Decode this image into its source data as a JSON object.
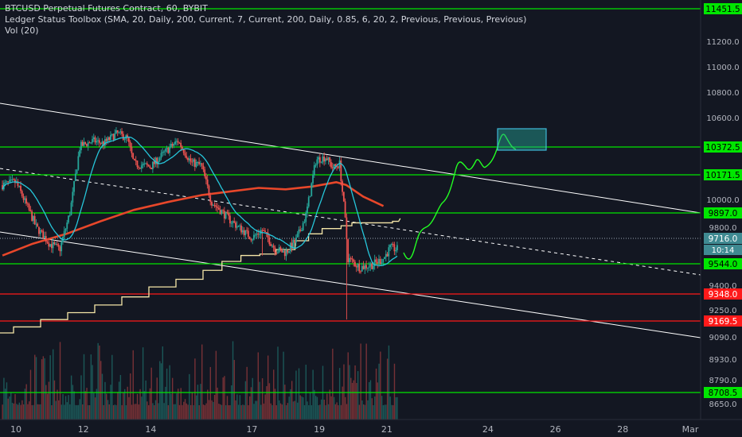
{
  "header": {
    "symbol_line": "BTCUSD Perpetual Futures Contract, 60, BYBIT",
    "indicator_line": "Ledger Status Toolbox (SMA, 20, Daily, 200, Current, 7, Current, 200, Daily, 0.85, 6, 20, 2, Previous, Previous, Previous)",
    "volume_line": "Vol (20)"
  },
  "chart_data": {
    "type": "candlestick",
    "x_tick_labels": [
      "10",
      "12",
      "14",
      "17",
      "19",
      "21",
      "24",
      "26",
      "28",
      "Mar"
    ],
    "y_tick_labels": [
      "11200.0",
      "11000.0",
      "10800.0",
      "10600.0",
      "10000.0",
      "9800.0",
      "9400.0",
      "9250.0",
      "9090.0",
      "8930.0",
      "8790.0",
      "8650.0"
    ],
    "y_range": [
      8600,
      11500
    ],
    "horizontal_levels": [
      {
        "label": "11451.5",
        "value": 11451.5,
        "color": "#00e600"
      },
      {
        "label": "10372.5",
        "value": 10372.5,
        "color": "#00e600"
      },
      {
        "label": "10171.5",
        "value": 10171.5,
        "color": "#00e600"
      },
      {
        "label": "9897.0",
        "value": 9897.0,
        "color": "#00e600"
      },
      {
        "label": "9544.0",
        "value": 9544.0,
        "color": "#00e600"
      },
      {
        "label": "9348.0",
        "value": 9348.0,
        "color": "#ff1a1a"
      },
      {
        "label": "9169.5",
        "value": 9169.5,
        "color": "#ff1a1a"
      },
      {
        "label": "8708.5",
        "value": 8708.5,
        "color": "#00e600"
      }
    ],
    "last_price": {
      "label": "9716.0",
      "value": 9716.0
    },
    "countdown": {
      "label": "10:14"
    },
    "colors": {
      "background": "#131722",
      "up": "#26a69a",
      "down": "#ef5350",
      "sma200": "#e8472a",
      "sma20": "#26c6da",
      "stepped_line": "#f5e6a8",
      "trendline": "#ffffff",
      "projection": "#22ff22"
    }
  }
}
